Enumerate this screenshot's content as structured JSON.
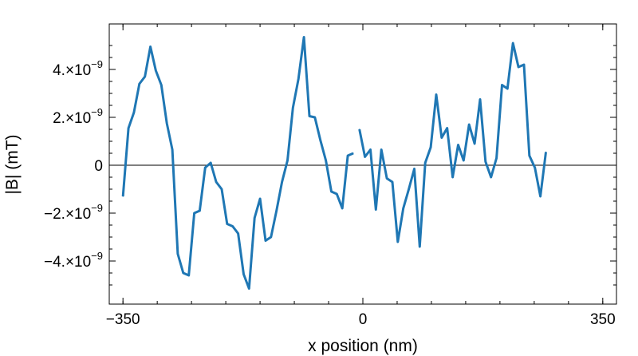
{
  "chart_data": {
    "type": "line",
    "title": "",
    "xlabel": "x position (nm)",
    "ylabel": "|B| (mT)",
    "xlim": [
      -370,
      370
    ],
    "ylim": [
      -5.8e-09,
      5.9e-09
    ],
    "x_ticks": [
      {
        "value": -350,
        "label": "−350"
      },
      {
        "value": 0,
        "label": "0"
      },
      {
        "value": 350,
        "label": "350"
      }
    ],
    "y_ticks": [
      {
        "value": 4e-09,
        "mantissa": "4.×10",
        "exponent": "−9"
      },
      {
        "value": 2e-09,
        "mantissa": "2.×10",
        "exponent": "−9"
      },
      {
        "value": 0,
        "mantissa": "0",
        "exponent": ""
      },
      {
        "value": -2e-09,
        "mantissa": "−2.×10",
        "exponent": "−9"
      },
      {
        "value": -4e-09,
        "mantissa": "−4.×10",
        "exponent": "−9"
      }
    ],
    "grid": false,
    "line_color": "#1f77b4",
    "zero_line": true,
    "series": [
      {
        "segments": [
          [
            [
              -350,
              -1.3e-09
            ],
            [
              -342,
              1.55e-09
            ],
            [
              -334,
              2.2e-09
            ],
            [
              -326,
              3.4e-09
            ],
            [
              -318,
              3.7e-09
            ],
            [
              -310,
              4.95e-09
            ],
            [
              -302,
              3.95e-09
            ],
            [
              -294,
              3.35e-09
            ],
            [
              -286,
              1.75e-09
            ],
            [
              -278,
              6.5e-10
            ],
            [
              -270,
              -3.7e-09
            ],
            [
              -262,
              -4.5e-09
            ],
            [
              -254,
              -4.6e-09
            ],
            [
              -246,
              -2e-09
            ],
            [
              -238,
              -1.9e-09
            ],
            [
              -230,
              -1e-10
            ],
            [
              -222,
              1e-10
            ],
            [
              -214,
              -7e-10
            ],
            [
              -206,
              -1e-09
            ],
            [
              -198,
              -2.45e-09
            ],
            [
              -190,
              -2.55e-09
            ],
            [
              -182,
              -2.85e-09
            ],
            [
              -174,
              -4.55e-09
            ],
            [
              -166,
              -5.15e-09
            ],
            [
              -158,
              -2.2e-09
            ],
            [
              -150,
              -1.4e-09
            ],
            [
              -142,
              -3.15e-09
            ],
            [
              -134,
              -3e-09
            ],
            [
              -126,
              -1.9e-09
            ],
            [
              -118,
              -7e-10
            ],
            [
              -110,
              2e-10
            ],
            [
              -102,
              2.4e-09
            ],
            [
              -94,
              3.6e-09
            ],
            [
              -86,
              5.35e-09
            ],
            [
              -78,
              2.05e-09
            ],
            [
              -70,
              2e-09
            ],
            [
              -62,
              1.05e-09
            ],
            [
              -54,
              2e-10
            ],
            [
              -46,
              -1.1e-09
            ],
            [
              -38,
              -1.2e-09
            ],
            [
              -30,
              -1.8e-09
            ],
            [
              -22,
              4e-10
            ],
            [
              -14,
              5e-10
            ]
          ],
          [
            [
              -5,
              1.5e-09
            ],
            [
              3,
              3.5e-10
            ],
            [
              11,
              6.5e-10
            ],
            [
              19,
              -1.85e-09
            ],
            [
              27,
              6.5e-10
            ],
            [
              35,
              -5.5e-10
            ],
            [
              43,
              -7e-10
            ],
            [
              51,
              -3.2e-09
            ],
            [
              59,
              -1.8e-09
            ],
            [
              67,
              -1e-09
            ],
            [
              75,
              -1.5e-10
            ],
            [
              83,
              -3.4e-09
            ],
            [
              91,
              1e-10
            ],
            [
              99,
              7.5e-10
            ],
            [
              107,
              2.95e-09
            ],
            [
              115,
              1.15e-09
            ],
            [
              123,
              1.55e-09
            ],
            [
              131,
              -5e-10
            ],
            [
              139,
              8.5e-10
            ],
            [
              147,
              2e-10
            ],
            [
              155,
              1.7e-09
            ],
            [
              163,
              9e-10
            ],
            [
              171,
              2.75e-09
            ],
            [
              179,
              1.5e-10
            ],
            [
              187,
              -5e-10
            ],
            [
              195,
              3e-10
            ],
            [
              203,
              3.35e-09
            ],
            [
              211,
              3.2e-09
            ],
            [
              219,
              5.1e-09
            ],
            [
              227,
              4.1e-09
            ],
            [
              235,
              4.2e-09
            ],
            [
              243,
              4e-10
            ],
            [
              251,
              -1e-10
            ],
            [
              259,
              -1.3e-09
            ],
            [
              267,
              5.5e-10
            ]
          ]
        ]
      }
    ]
  }
}
